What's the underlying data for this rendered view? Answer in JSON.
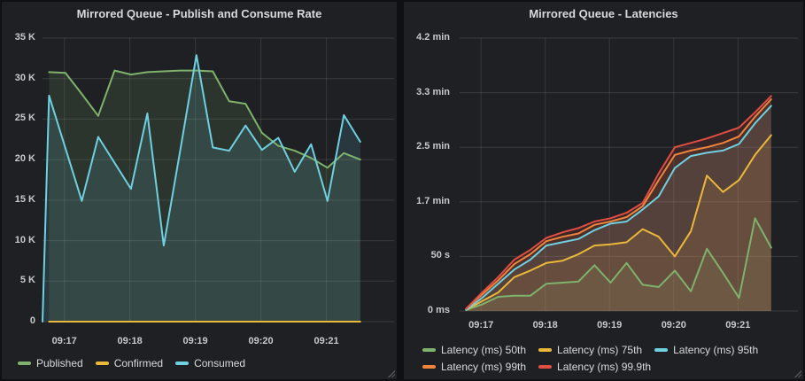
{
  "theme": {
    "page_bg": "#0f1013",
    "panel_bg": "#1e2023",
    "title_color": "#d8d9da",
    "axis_text_color": "#c8c9ca",
    "palette": {
      "green": "#7eb26d",
      "yellow": "#eab839",
      "cyan": "#6ed0e0",
      "orange": "#ef843c",
      "red": "#e24d42"
    }
  },
  "panels": [
    {
      "title": "Mirrored Queue - Publish and Consume Rate"
    },
    {
      "title": "Mirrored Queue - Latencies"
    }
  ],
  "chart_data": [
    {
      "type": "area",
      "title": "Mirrored Queue - Publish and Consume Rate",
      "legend_position": "bottom",
      "grid": true,
      "x_ticks": [
        {
          "label": "09:17",
          "s": 20
        },
        {
          "label": "09:18",
          "s": 80
        },
        {
          "label": "09:19",
          "s": 140
        },
        {
          "label": "09:20",
          "s": 200
        },
        {
          "label": "09:21",
          "s": 260
        }
      ],
      "x_domain_s": [
        0,
        322
      ],
      "x_axis_note": "time, left edge 09:16:40, samples every 15s from 09:16:46 to 09:21:31",
      "sample_seconds": [
        6,
        21,
        36,
        51,
        66,
        81,
        96,
        111,
        126,
        141,
        156,
        171,
        186,
        201,
        216,
        231,
        246,
        261,
        276,
        291
      ],
      "y_ticks": [
        {
          "label": "0",
          "value": 0
        },
        {
          "label": "5 K",
          "value": 5000
        },
        {
          "label": "10 K",
          "value": 10000
        },
        {
          "label": "15 K",
          "value": 15000
        },
        {
          "label": "20 K",
          "value": 20000
        },
        {
          "label": "25 K",
          "value": 25000
        },
        {
          "label": "30 K",
          "value": 30000
        },
        {
          "label": "35 K",
          "value": 35000
        }
      ],
      "ylim": [
        0,
        35000
      ],
      "series": [
        {
          "name": "Published",
          "color": "#7eb26d",
          "values": [
            30800,
            30700,
            28100,
            25400,
            31000,
            30500,
            30800,
            30900,
            31000,
            31000,
            30900,
            27200,
            26900,
            23300,
            21700,
            21100,
            20200,
            19000,
            20800,
            20000
          ]
        },
        {
          "name": "Confirmed",
          "color": "#eab839",
          "values": [
            0,
            0,
            0,
            0,
            0,
            0,
            0,
            0,
            0,
            0,
            0,
            0,
            0,
            0,
            0,
            0,
            0,
            0,
            0,
            0
          ]
        },
        {
          "name": "Consumed",
          "color": "#6ed0e0",
          "prepend_zero": true,
          "values": [
            27900,
            21400,
            14900,
            22800,
            19600,
            16400,
            25700,
            9400,
            21000,
            32900,
            21500,
            21100,
            24200,
            21200,
            22700,
            18500,
            21900,
            14900,
            25500,
            22200
          ]
        }
      ]
    },
    {
      "type": "area",
      "title": "Mirrored Queue - Latencies",
      "legend_position": "bottom",
      "grid": true,
      "x_ticks": [
        {
          "label": "09:17",
          "s": 20
        },
        {
          "label": "09:18",
          "s": 80
        },
        {
          "label": "09:19",
          "s": 140
        },
        {
          "label": "09:20",
          "s": 200
        },
        {
          "label": "09:21",
          "s": 260
        }
      ],
      "x_domain_s": [
        0,
        316
      ],
      "x_axis_note": "time, samples every 15s from 09:16:46 to 09:21:31",
      "sample_seconds": [
        6,
        21,
        36,
        51,
        66,
        81,
        96,
        111,
        126,
        141,
        156,
        171,
        186,
        201,
        216,
        231,
        246,
        261,
        276,
        291
      ],
      "y_ticks": [
        {
          "label": "0 ms",
          "value": 0
        },
        {
          "label": "50 s",
          "value": 50
        },
        {
          "label": "1.7 min",
          "value": 100
        },
        {
          "label": "2.5 min",
          "value": 150
        },
        {
          "label": "3.3 min",
          "value": 200
        },
        {
          "label": "4.2 min",
          "value": 250
        }
      ],
      "ylim": [
        0,
        250
      ],
      "y_unit": "seconds",
      "series": [
        {
          "name": "Latency (ms) 50th",
          "color": "#7eb26d",
          "values": [
            1,
            6,
            13,
            14,
            14,
            25,
            26,
            27,
            42,
            26,
            44,
            24,
            22,
            37,
            18,
            57,
            35,
            12,
            85,
            58
          ]
        },
        {
          "name": "Latency (ms) 75th",
          "color": "#eab839",
          "values": [
            1,
            9,
            17,
            31,
            37,
            44,
            46,
            52,
            60,
            61,
            63,
            75,
            68,
            50,
            73,
            124,
            109,
            120,
            143,
            161
          ]
        },
        {
          "name": "Latency (ms) 95th",
          "color": "#6ed0e0",
          "values": [
            1,
            12,
            25,
            38,
            47,
            60,
            63,
            66,
            74,
            80,
            82,
            93,
            105,
            131,
            142,
            145,
            147,
            153,
            172,
            188
          ]
        },
        {
          "name": "Latency (ms) 99th",
          "color": "#ef843c",
          "values": [
            2,
            15,
            28,
            43,
            52,
            64,
            68,
            71,
            79,
            82,
            86,
            96,
            120,
            143,
            147,
            150,
            154,
            160,
            178,
            194
          ]
        },
        {
          "name": "Latency (ms) 99.9th",
          "color": "#e24d42",
          "values": [
            2,
            17,
            31,
            47,
            56,
            67,
            72,
            76,
            82,
            85,
            90,
            99,
            126,
            150,
            154,
            158,
            163,
            168,
            182,
            197
          ]
        }
      ]
    }
  ]
}
